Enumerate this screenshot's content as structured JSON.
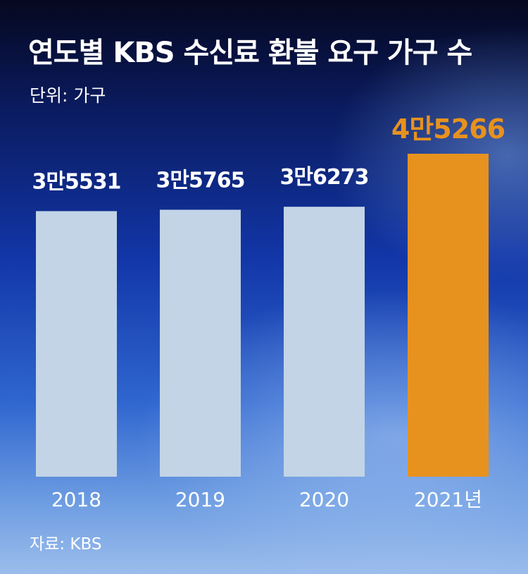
{
  "title": "연도별 KBS 수신료 환불 요구 가구 수",
  "unit": "단위: 가구",
  "source": "자료: KBS",
  "colors": {
    "bar": "#c2d4e6",
    "highlight": "#e7921f",
    "text": "#ffffff"
  },
  "chart_data": {
    "type": "bar",
    "categories": [
      "2018",
      "2019",
      "2020",
      "2021년"
    ],
    "values": [
      35531,
      35765,
      36273,
      45266
    ],
    "labels": [
      "3만5531",
      "3만5765",
      "3만6273",
      "4만5266"
    ],
    "highlight_index": 3,
    "title": "연도별 KBS 수신료 환불 요구 가구 수",
    "xlabel": "",
    "ylabel": "",
    "grid": false,
    "legend": "none"
  }
}
